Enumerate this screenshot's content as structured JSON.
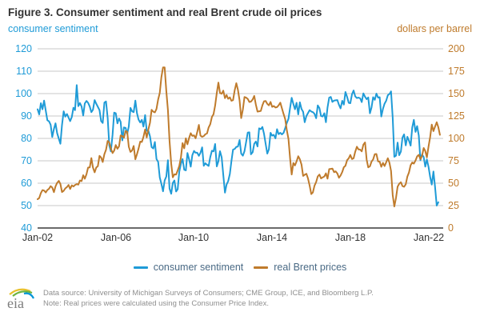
{
  "title": "Figure 3. Consumer sentiment and real Brent crude oil prices",
  "left_axis": {
    "label": "consumer sentiment",
    "color": "#1f9bd7",
    "range": [
      40,
      120
    ],
    "ticks": [
      120,
      110,
      100,
      90,
      80,
      70,
      60,
      50,
      40
    ]
  },
  "right_axis": {
    "label": "dollars per barrel",
    "color": "#bf7b2c",
    "range": [
      0,
      200
    ],
    "ticks": [
      200,
      175,
      150,
      125,
      100,
      75,
      50,
      25,
      0
    ]
  },
  "x_axis": {
    "tick_labels": [
      "Jan-02",
      "Jan-06",
      "Jan-10",
      "Jan-14",
      "Jan-18",
      "Jan-22"
    ],
    "tick_years": [
      2002,
      2006,
      2010,
      2014,
      2018,
      2022
    ]
  },
  "legend": [
    {
      "label": "consumer sentiment",
      "color": "#1f9bd7"
    },
    {
      "label": "real Brent prices",
      "color": "#bf7b2c"
    }
  ],
  "footer": {
    "logo_text": "eia",
    "source_line": "Data source: University of Michigan Surveys of Consumers; CME Group, ICE, and Bloomberg L.P.",
    "note_line": "Note: Real prices were calculated using the Consumer Price Index."
  },
  "chart_data": {
    "type": "line",
    "title": "Figure 3. Consumer sentiment and real Brent crude oil prices",
    "grid": true,
    "x_frequency": "monthly",
    "x_range_years": [
      2002,
      2022.75
    ],
    "left_ylim": [
      40,
      120
    ],
    "right_ylim": [
      0,
      200
    ],
    "series": [
      {
        "name": "consumer sentiment",
        "axis": "left",
        "color": "#1f9bd7",
        "start": "2002-01",
        "values": [
          93.0,
          90.7,
          95.7,
          93.0,
          96.9,
          92.4,
          88.1,
          87.6,
          86.1,
          80.6,
          84.2,
          86.7,
          82.4,
          79.9,
          77.6,
          86.0,
          92.1,
          89.7,
          90.9,
          89.3,
          87.7,
          89.6,
          93.7,
          92.6,
          103.8,
          94.4,
          95.8,
          94.2,
          90.2,
          95.6,
          96.7,
          95.9,
          94.2,
          91.7,
          92.8,
          97.1,
          95.5,
          94.1,
          92.6,
          87.7,
          86.9,
          96.0,
          96.5,
          89.1,
          76.9,
          74.2,
          81.6,
          91.5,
          91.2,
          86.7,
          88.9,
          87.4,
          79.1,
          84.9,
          84.7,
          82.0,
          85.4,
          93.6,
          92.1,
          91.7,
          96.9,
          91.3,
          88.4,
          87.1,
          88.3,
          85.3,
          90.4,
          83.4,
          83.4,
          80.9,
          76.1,
          75.5,
          78.4,
          70.8,
          69.5,
          62.6,
          59.8,
          56.4,
          61.2,
          63.0,
          70.3,
          57.6,
          55.3,
          60.1,
          61.2,
          56.3,
          57.3,
          65.1,
          68.7,
          70.8,
          66.0,
          65.7,
          73.5,
          70.6,
          67.4,
          72.5,
          74.4,
          73.6,
          73.6,
          72.2,
          73.6,
          76.0,
          67.8,
          68.9,
          68.2,
          67.7,
          71.6,
          74.5,
          74.2,
          77.5,
          67.5,
          69.8,
          74.3,
          71.5,
          63.7,
          55.8,
          59.4,
          60.9,
          64.1,
          69.9,
          75.0,
          75.3,
          76.2,
          76.4,
          79.3,
          73.2,
          72.3,
          74.3,
          78.3,
          82.6,
          82.7,
          72.9,
          73.8,
          77.6,
          78.6,
          76.4,
          84.5,
          84.1,
          85.1,
          82.1,
          77.5,
          73.2,
          75.1,
          82.5,
          81.2,
          81.6,
          80.0,
          84.1,
          81.9,
          82.5,
          81.8,
          82.5,
          84.6,
          86.9,
          88.8,
          93.6,
          98.1,
          95.4,
          93.0,
          95.9,
          90.7,
          96.1,
          93.1,
          91.9,
          87.2,
          90.0,
          91.3,
          92.6,
          92.0,
          91.7,
          91.0,
          89.0,
          94.7,
          93.5,
          90.0,
          89.8,
          91.2,
          87.2,
          93.8,
          98.2,
          98.5,
          96.3,
          96.9,
          97.0,
          97.1,
          95.0,
          93.4,
          96.8,
          95.1,
          100.7,
          98.5,
          95.9,
          95.7,
          99.7,
          101.4,
          98.8,
          98.0,
          98.2,
          97.9,
          96.2,
          100.1,
          98.6,
          97.5,
          98.3,
          91.2,
          93.8,
          98.4,
          97.2,
          100.0,
          98.2,
          98.4,
          89.8,
          93.2,
          95.5,
          96.8,
          99.3,
          99.8,
          101.0,
          89.1,
          71.8,
          72.3,
          78.1,
          72.5,
          74.1,
          80.4,
          81.8,
          76.9,
          80.7,
          79.0,
          76.8,
          84.9,
          88.3,
          82.9,
          85.5,
          81.2,
          70.3,
          72.8,
          71.7,
          67.4,
          70.6,
          67.2,
          62.8,
          59.4,
          65.2,
          58.4,
          50.0,
          51.5
        ]
      },
      {
        "name": "real Brent prices",
        "axis": "right",
        "color": "#bf7b2c",
        "start": "2002-01",
        "values": [
          32.1,
          33.4,
          39.0,
          42.3,
          41.8,
          39.6,
          42.4,
          43.8,
          46.7,
          45.2,
          40.0,
          46.4,
          50.4,
          52.6,
          49.1,
          40.2,
          41.5,
          44.2,
          45.7,
          48.0,
          43.6,
          47.6,
          46.3,
          48.0,
          49.0,
          48.4,
          53.0,
          52.3,
          58.9,
          55.0,
          60.0,
          67.4,
          67.7,
          78.0,
          67.5,
          62.1,
          67.5,
          69.0,
          80.5,
          78.7,
          73.7,
          82.5,
          87.2,
          97.2,
          95.4,
          88.7,
          83.7,
          86.3,
          92.6,
          88.4,
          91.2,
          103.3,
          102.5,
          100.7,
          108.2,
          107.5,
          90.6,
          84.9,
          86.5,
          91.5,
          76.7,
          82.3,
          88.7,
          96.4,
          96.0,
          101.5,
          110.0,
          101.1,
          110.2,
          117.5,
          131.9,
          129.8,
          129.0,
          132.9,
          143.6,
          150.7,
          168.1,
          179.3,
          179.3,
          152.7,
          131.8,
          97.3,
          71.9,
          56.6,
          59.9,
          59.6,
          64.2,
          69.3,
          79.1,
          94.7,
          88.9,
          100.1,
          93.4,
          100.5,
          105.8,
          102.8,
          103.4,
          100.1,
          106.9,
          115.1,
          103.0,
          101.8,
          102.6,
          104.6,
          105.6,
          112.2,
          115.8,
          124.0,
          127.0,
          136.5,
          150.8,
          162.3,
          150.7,
          149.8,
          153.3,
          144.9,
          148.4,
          144.2,
          145.8,
          142.0,
          142.7,
          153.8,
          161.6,
          154.3,
          142.2,
          122.7,
          132.3,
          146.2,
          145.5,
          144.0,
          140.6,
          141.1,
          143.4,
          147.4,
          137.8,
          129.9,
          130.3,
          130.7,
          137.0,
          141.4,
          141.7,
          138.6,
          136.9,
          140.7,
          135.2,
          136.2,
          134.5,
          134.9,
          137.0,
          139.9,
          133.6,
          127.1,
          121.5,
          109.3,
          99.3,
          77.9,
          59.7,
          72.6,
          69.8,
          74.3,
          80.1,
          76.8,
          70.7,
          58.1,
          59.5,
          60.5,
          55.3,
          47.5,
          37.9,
          39.7,
          47.1,
          51.3,
          57.6,
          59.6,
          55.4,
          56.5,
          57.5,
          61.0,
          55.1,
          65.7,
          66.0,
          66.3,
          62.3,
          63.2,
          60.8,
          56.1,
          58.6,
          62.5,
          67.9,
          69.5,
          75.7,
          77.8,
          81.5,
          77.0,
          77.8,
          85.0,
          90.7,
          87.7,
          87.5,
          85.5,
          93.0,
          95.5,
          76.4,
          67.7,
          68.8,
          74.1,
          76.5,
          82.4,
          82.6,
          74.3,
          74.0,
          68.3,
          72.7,
          69.1,
          73.2,
          77.9,
          72.9,
          63.7,
          36.6,
          24.0,
          33.6,
          46.1,
          49.4,
          51.1,
          46.8,
          46.0,
          48.8,
          57.4,
          62.0,
          70.1,
          73.1,
          71.9,
          75.4,
          79.9,
          81.7,
          76.7,
          80.4,
          89.3,
          86.0,
          78.8,
          91.1,
          101.5,
          115.4,
          108.1,
          113.1,
          118.0,
          112.5,
          104.0
        ]
      }
    ]
  }
}
